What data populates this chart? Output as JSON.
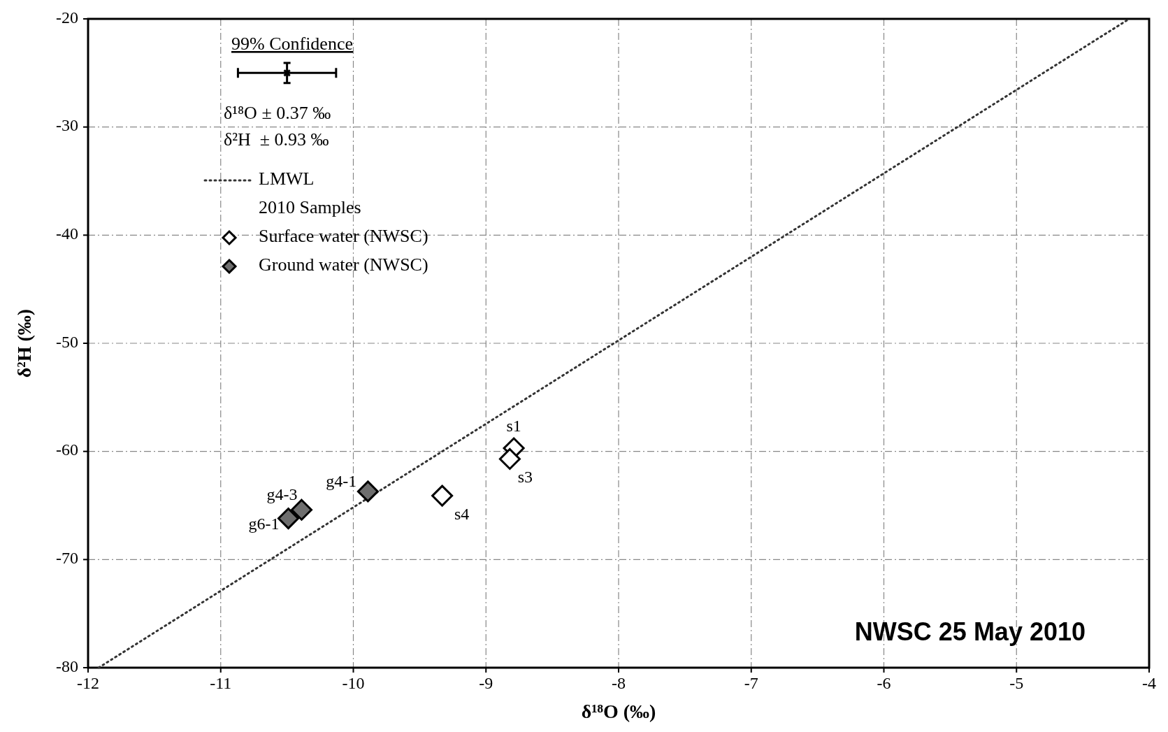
{
  "chart_data": {
    "type": "scatter",
    "xlabel": "δ¹⁸O (‰)",
    "ylabel": "δ²H (‰)",
    "xlim": [
      -12,
      -4
    ],
    "xticks": [
      -12,
      -11,
      -10,
      -9,
      -8,
      -7,
      -6,
      -5,
      -4
    ],
    "ylim": [
      -80,
      -20
    ],
    "yticks": [
      -80,
      -70,
      -60,
      -50,
      -40,
      -30,
      -20
    ],
    "grid": true,
    "legend": "top left",
    "legend_title": "2010 Samples",
    "marker": "diamond",
    "annotations": [
      "99% Confidence",
      "δ¹⁸O ± 0.37 ‰",
      "δ²H  ± 0.93 ‰",
      "NWSC 25 May 2010"
    ],
    "series": [
      {
        "name": "LMWL",
        "type": "line",
        "line_style": "dotted",
        "marker": "none",
        "color": "#333333",
        "x": [
          -11.92,
          -4.15
        ],
        "values": [
          -80,
          -20
        ]
      },
      {
        "type": "scatter",
        "marker": "cross",
        "color": "#000000",
        "x": [
          -10.5
        ],
        "values": [
          -25
        ],
        "errors": [
          0.93
        ],
        "xerrors": [
          0.37
        ]
      },
      {
        "name": "Surface water (NWSC)",
        "color": "#ffffff",
        "x": [
          -8.79,
          -8.82,
          -9.33
        ],
        "values": [
          -59.7,
          -60.7,
          -64.1
        ],
        "value_labels": [
          "s1",
          "s3",
          "s4"
        ]
      },
      {
        "name": "Ground water (NWSC)",
        "color": "#6e6e6e",
        "x": [
          -9.89,
          -10.39,
          -10.49
        ],
        "values": [
          -63.7,
          -65.4,
          -66.2
        ],
        "value_labels": [
          "g4-1",
          "g4-3",
          "g6-1"
        ]
      }
    ]
  }
}
